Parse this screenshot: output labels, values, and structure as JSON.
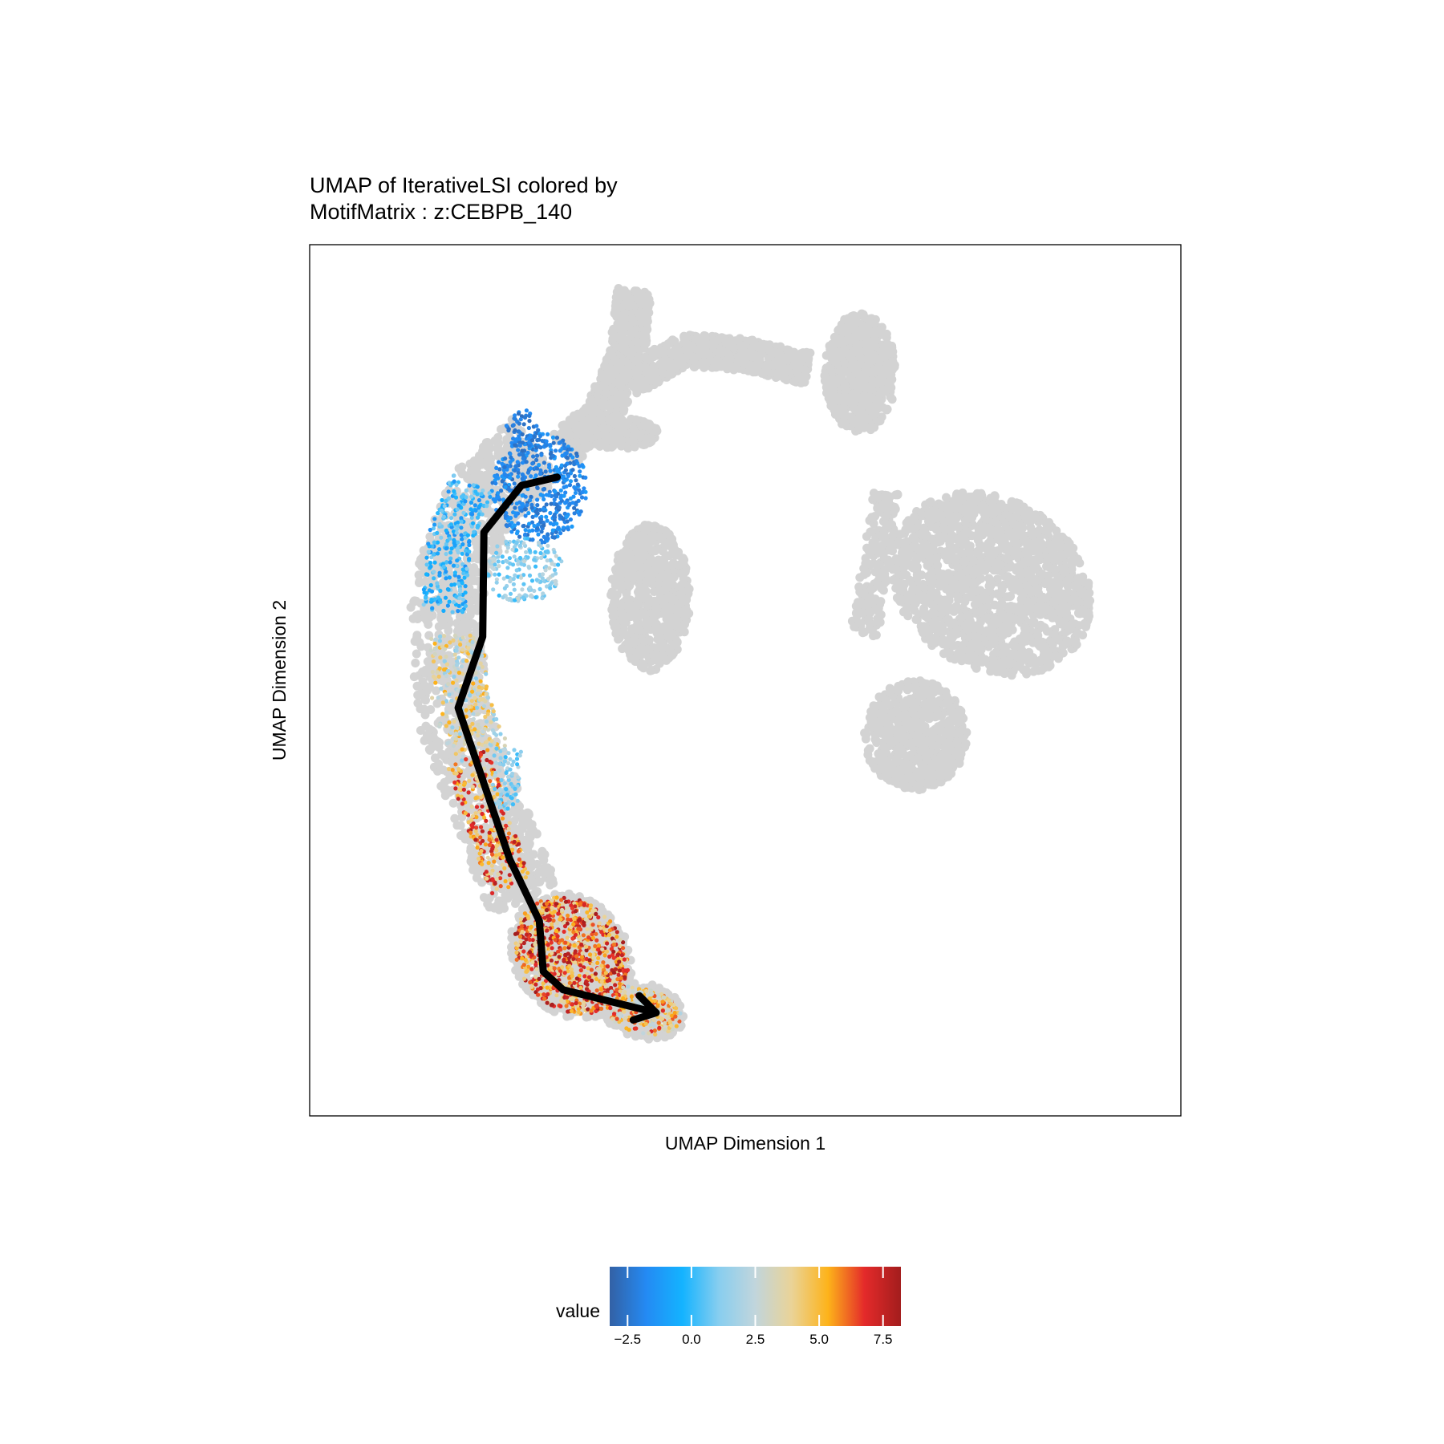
{
  "chart_data": {
    "type": "scatter",
    "title": [
      "UMAP of IterativeLSI colored by",
      "MotifMatrix : z:CEBPB_140"
    ],
    "xlabel": "UMAP Dimension 1",
    "ylabel": "UMAP Dimension 2",
    "x_ticks_shown": false,
    "y_ticks_shown": false,
    "grid": false,
    "background_point_color": "#d3d3d3",
    "colorbar": {
      "title": "value",
      "range": [
        -3.2,
        8.2
      ],
      "ticks": [
        -2.5,
        0.0,
        2.5,
        5.0,
        7.5
      ],
      "tick_labels": [
        "−2.5",
        "0.0",
        "2.5",
        "5.0",
        "7.5"
      ],
      "colors": [
        "#3361a5",
        "#248af3",
        "#14b3ff",
        "#88ceef",
        "#c1d5dc",
        "#ead397",
        "#fdb31a",
        "#e42a2a",
        "#a31d1d"
      ],
      "placement": "bottom"
    },
    "trajectory": {
      "color": "#000000",
      "arrow_at_end": true,
      "points": [
        [
          -3.75,
          2.93
        ],
        [
          -4.65,
          2.75
        ],
        [
          -5.6,
          1.73
        ],
        [
          -5.63,
          -0.55
        ],
        [
          -6.25,
          -2.1
        ],
        [
          -4.95,
          -5.4
        ],
        [
          -4.2,
          -6.75
        ],
        [
          -4.1,
          -7.85
        ],
        [
          -3.6,
          -8.25
        ],
        [
          -1.25,
          -8.75
        ]
      ]
    }
  }
}
